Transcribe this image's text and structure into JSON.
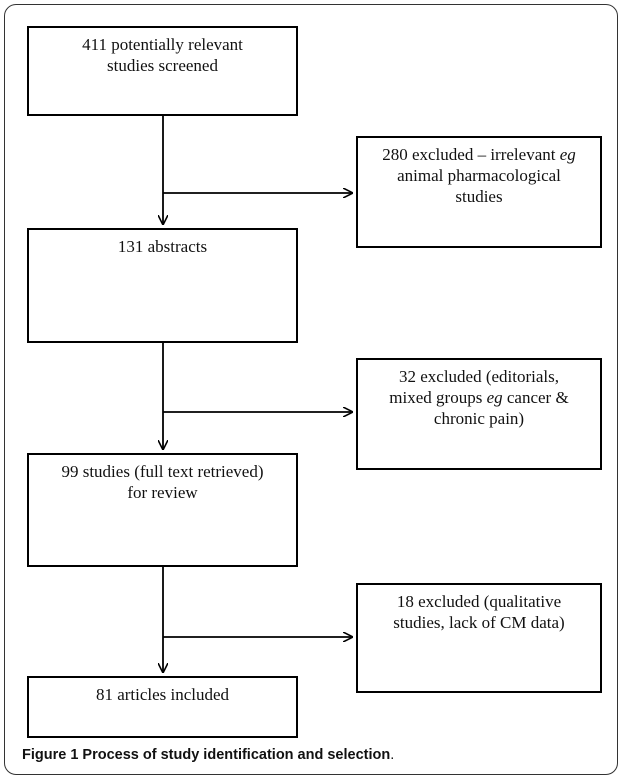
{
  "main_boxes": [
    {
      "lines": [
        "411 potentially relevant",
        "studies screened"
      ]
    },
    {
      "lines": [
        "131 abstracts"
      ]
    },
    {
      "lines": [
        "99 studies (full text retrieved)",
        "for review"
      ]
    },
    {
      "lines": [
        "81 articles included"
      ]
    }
  ],
  "excluded_boxes": [
    {
      "line1_prefix": "280 excluded – irrelevant ",
      "line1_em": "eg",
      "line2": "animal pharmacological",
      "line3": "studies"
    },
    {
      "line1": "32 excluded  (editorials,",
      "line2_prefix": "mixed groups ",
      "line2_em": "eg",
      "line2_suffix": " cancer &",
      "line3": "chronic pain)"
    },
    {
      "line1": "18 excluded (qualitative",
      "line2": "studies, lack of CM data)"
    }
  ],
  "caption": {
    "label": "Figure 1",
    "text": " Process of study identification and selection",
    "period": "."
  }
}
